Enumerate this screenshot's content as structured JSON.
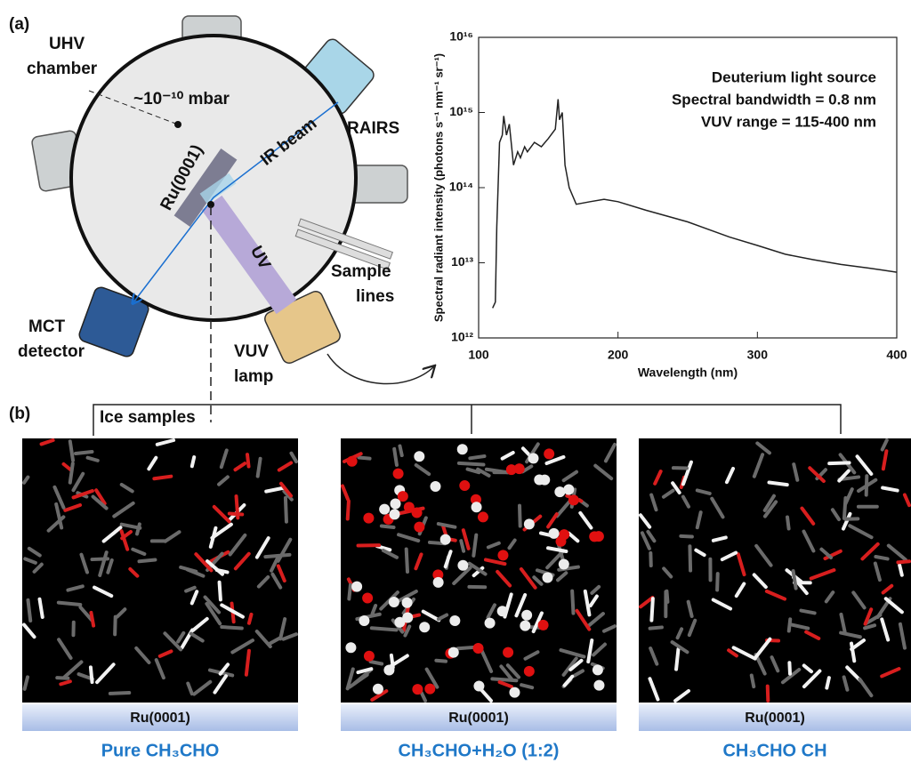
{
  "panel_a": {
    "label": "(a)",
    "chamber": [
      "UHV",
      "chamber"
    ],
    "pressure": "~10⁻¹⁰ mbar",
    "substrate": "Ru(0001)",
    "ir_beam": "IR beam",
    "rairs": "RAIRS",
    "uv": "UV",
    "sample_lines": [
      "Sample",
      "lines"
    ],
    "mct": [
      "MCT",
      "detector"
    ],
    "vuv": [
      "VUV",
      "lamp"
    ]
  },
  "chart_data": {
    "type": "line",
    "log_y": true,
    "color": "#222222",
    "annotations": [
      "Deuterium light source",
      "Spectral bandwidth = 0.8 nm",
      "VUV range = 115-400 nm"
    ],
    "x_label": "Wavelength (nm)",
    "y_label": "Spectral radiant intensity (photons s⁻¹ nm⁻¹ sr⁻¹)",
    "x": [
      110,
      112,
      113,
      115,
      117,
      118,
      120,
      122,
      125,
      128,
      130,
      133,
      135,
      140,
      145,
      150,
      155,
      157,
      158,
      160,
      162,
      165,
      170,
      180,
      190,
      200,
      220,
      250,
      280,
      300,
      320,
      340,
      360,
      380,
      390,
      400
    ],
    "values": [
      2500000000000.0,
      3000000000000.0,
      30000000000000.0,
      400000000000000.0,
      500000000000000.0,
      900000000000000.0,
      500000000000000.0,
      700000000000000.0,
      200000000000000.0,
      300000000000000.0,
      250000000000000.0,
      350000000000000.0,
      300000000000000.0,
      400000000000000.0,
      350000000000000.0,
      450000000000000.0,
      600000000000000.0,
      1500000000000000.0,
      800000000000000.0,
      1000000000000000.0,
      200000000000000.0,
      100000000000000.0,
      60000000000000.0,
      65000000000000.0,
      70000000000000.0,
      65000000000000.0,
      50000000000000.0,
      35000000000000.0,
      22000000000000.0,
      17000000000000.0,
      13000000000000.0,
      11000000000000.0,
      9500000000000.0,
      8500000000000.0,
      8000000000000.0,
      7500000000000.0
    ],
    "xlim": [
      100,
      400
    ],
    "xticks": [
      100,
      200,
      300,
      400
    ],
    "ylim": [
      1000000000000.0,
      1e+16
    ],
    "yticks": [
      {
        "value": 1000000000000.0,
        "label": "10¹²"
      },
      {
        "value": 10000000000000.0,
        "label": "10¹³"
      },
      {
        "value": 100000000000000.0,
        "label": "10¹⁴"
      },
      {
        "value": 1000000000000000.0,
        "label": "10¹⁵"
      },
      {
        "value": 1e+16,
        "label": "10¹⁶"
      }
    ]
  },
  "panel_b": {
    "label": "(b)",
    "title": "Ice samples",
    "samples": [
      {
        "substrate": "Ru(0001)",
        "name": "Pure CH₃CHO"
      },
      {
        "substrate": "Ru(0001)",
        "name": "CH₃CHO+H₂O (1:2)"
      },
      {
        "substrate": "Ru(0001)",
        "name": "CH₃CHO CH"
      }
    ]
  }
}
